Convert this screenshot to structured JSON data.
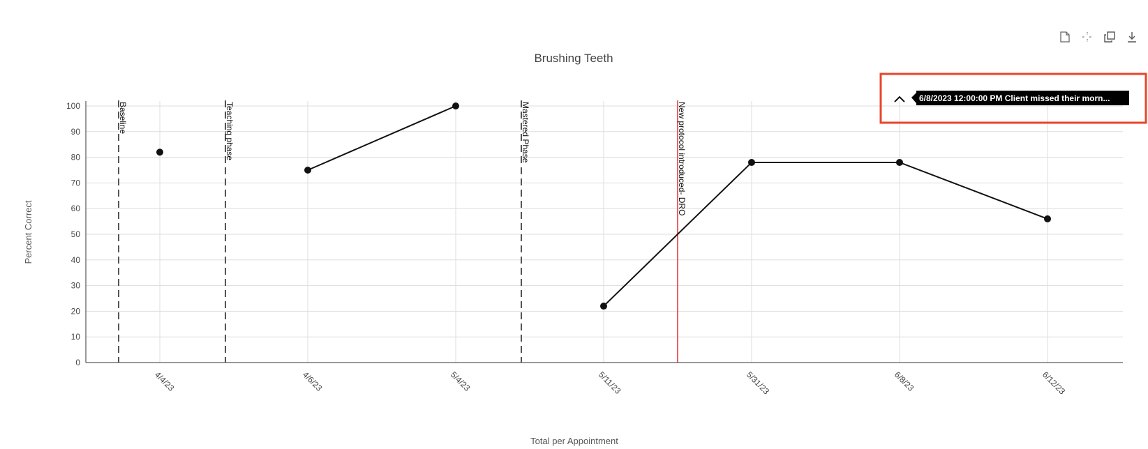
{
  "toolbar": {
    "icons": [
      "document-icon",
      "crosshair-icon",
      "copy-icon",
      "download-icon"
    ]
  },
  "chart_data": {
    "type": "line",
    "title": "Brushing Teeth",
    "xlabel": "Total per Appointment",
    "ylabel": "Percent Correct",
    "ylim": [
      0,
      100
    ],
    "yticks": [
      0,
      10,
      20,
      30,
      40,
      50,
      60,
      70,
      80,
      90,
      100
    ],
    "categories": [
      "4/4/23",
      "4/6/23",
      "5/4/23",
      "5/11/23",
      "5/31/23",
      "6/8/23",
      "6/12/23"
    ],
    "grid": true,
    "legend": "none",
    "series": [
      {
        "values": [
          82,
          75,
          100,
          22,
          78,
          78,
          56
        ],
        "color": "#111111",
        "segments": [
          [
            0,
            0
          ],
          [
            1,
            2
          ],
          [
            3,
            6
          ]
        ]
      }
    ],
    "phase_lines": [
      {
        "label": "Baseline",
        "before": "4/4/23",
        "style": "dashed",
        "color": "#555555"
      },
      {
        "label": "Teaching phase",
        "before": "4/6/23",
        "style": "dashed",
        "color": "#555555"
      },
      {
        "label": "Mastered Phase",
        "before": "5/11/23",
        "style": "dashed",
        "color": "#555555"
      },
      {
        "label": "New protocol introduced- DRO",
        "before": "5/31/23",
        "style": "solid",
        "color": "#e03030"
      }
    ],
    "annotation": {
      "text": "6/8/2023 12:00:00 PM Client missed their morn...",
      "highlight_color": "#e8452a"
    }
  }
}
